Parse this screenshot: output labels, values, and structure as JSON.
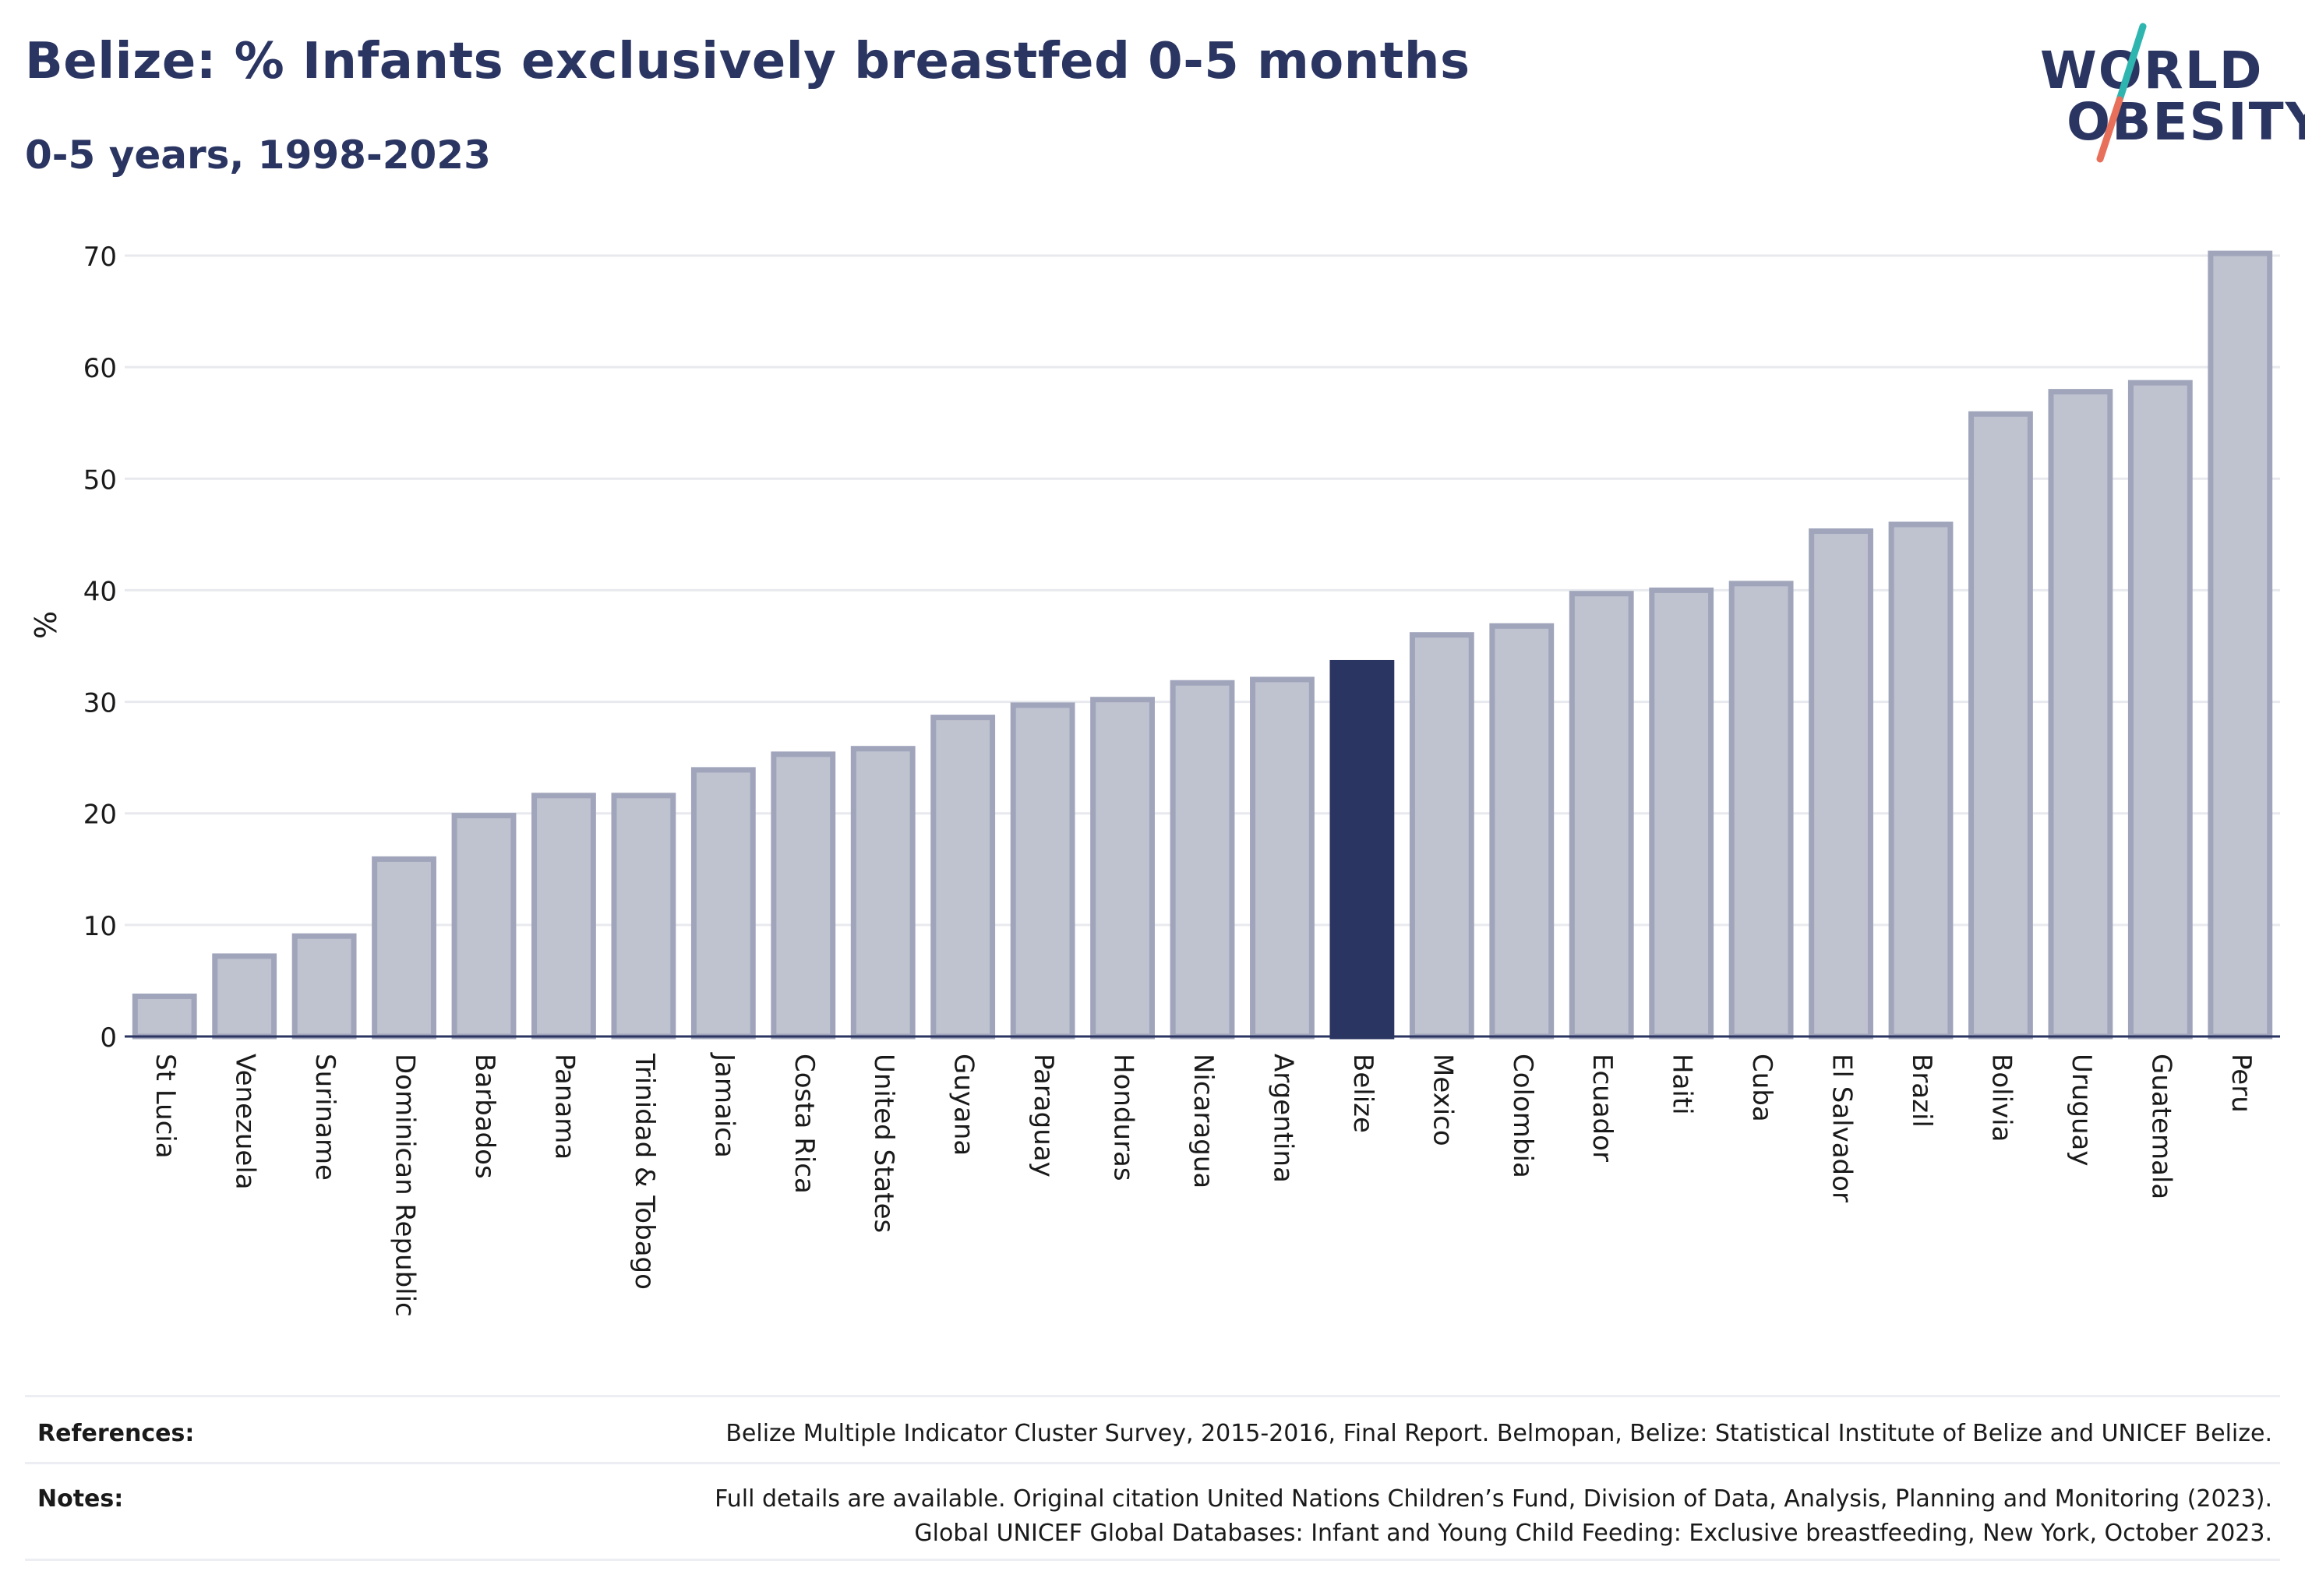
{
  "header": {
    "title": "Belize: % Infants exclusively breastfed 0-5 months",
    "subtitle": "0-5 years, 1998-2023"
  },
  "logo": {
    "line1": "WORLD",
    "line2": "OBESITY",
    "colors": {
      "text": "#2b3562",
      "slash_top": "#2fb5b0",
      "slash_bottom": "#e8705a"
    }
  },
  "chart_data": {
    "type": "bar",
    "ylabel": "%",
    "xlabel": "",
    "ylim": [
      0,
      70
    ],
    "yticks": [
      0,
      10,
      20,
      30,
      40,
      50,
      60,
      70
    ],
    "grid": true,
    "highlight": "Belize",
    "colors": {
      "bar_fill": "#bfc2cf",
      "bar_stroke": "#a0a5bb",
      "highlight": "#2b3562",
      "grid": "#e8e9ee",
      "axis": "#2b3562"
    },
    "categories": [
      "St Lucia",
      "Venezuela",
      "Suriname",
      "Dominican Republic",
      "Barbados",
      "Panama",
      "Trinidad & Tobago",
      "Jamaica",
      "Costa Rica",
      "United States",
      "Guyana",
      "Paraguay",
      "Honduras",
      "Nicaragua",
      "Argentina",
      "Belize",
      "Mexico",
      "Colombia",
      "Ecuador",
      "Haiti",
      "Cuba",
      "El Salvador",
      "Brazil",
      "Bolivia",
      "Uruguay",
      "Guatemala",
      "Peru"
    ],
    "values": [
      3.6,
      7.2,
      9.0,
      15.9,
      19.8,
      21.6,
      21.6,
      23.9,
      25.3,
      25.8,
      28.6,
      29.7,
      30.2,
      31.7,
      32.0,
      33.5,
      36.0,
      36.8,
      39.7,
      40.0,
      40.6,
      45.3,
      45.9,
      55.8,
      57.8,
      58.6,
      70.2
    ]
  },
  "footer": {
    "references_label": "References:",
    "references_text": "Belize Multiple Indicator Cluster Survey, 2015-2016, Final Report. Belmopan, Belize: Statistical Institute of Belize and UNICEF Belize.",
    "notes_label": "Notes:",
    "notes_line1": "Full details are available. Original citation United Nations Children’s Fund, Division of Data, Analysis, Planning and Monitoring (2023).",
    "notes_line2": "Global UNICEF Global Databases: Infant and Young Child Feeding: Exclusive breastfeeding, New York, October 2023."
  }
}
